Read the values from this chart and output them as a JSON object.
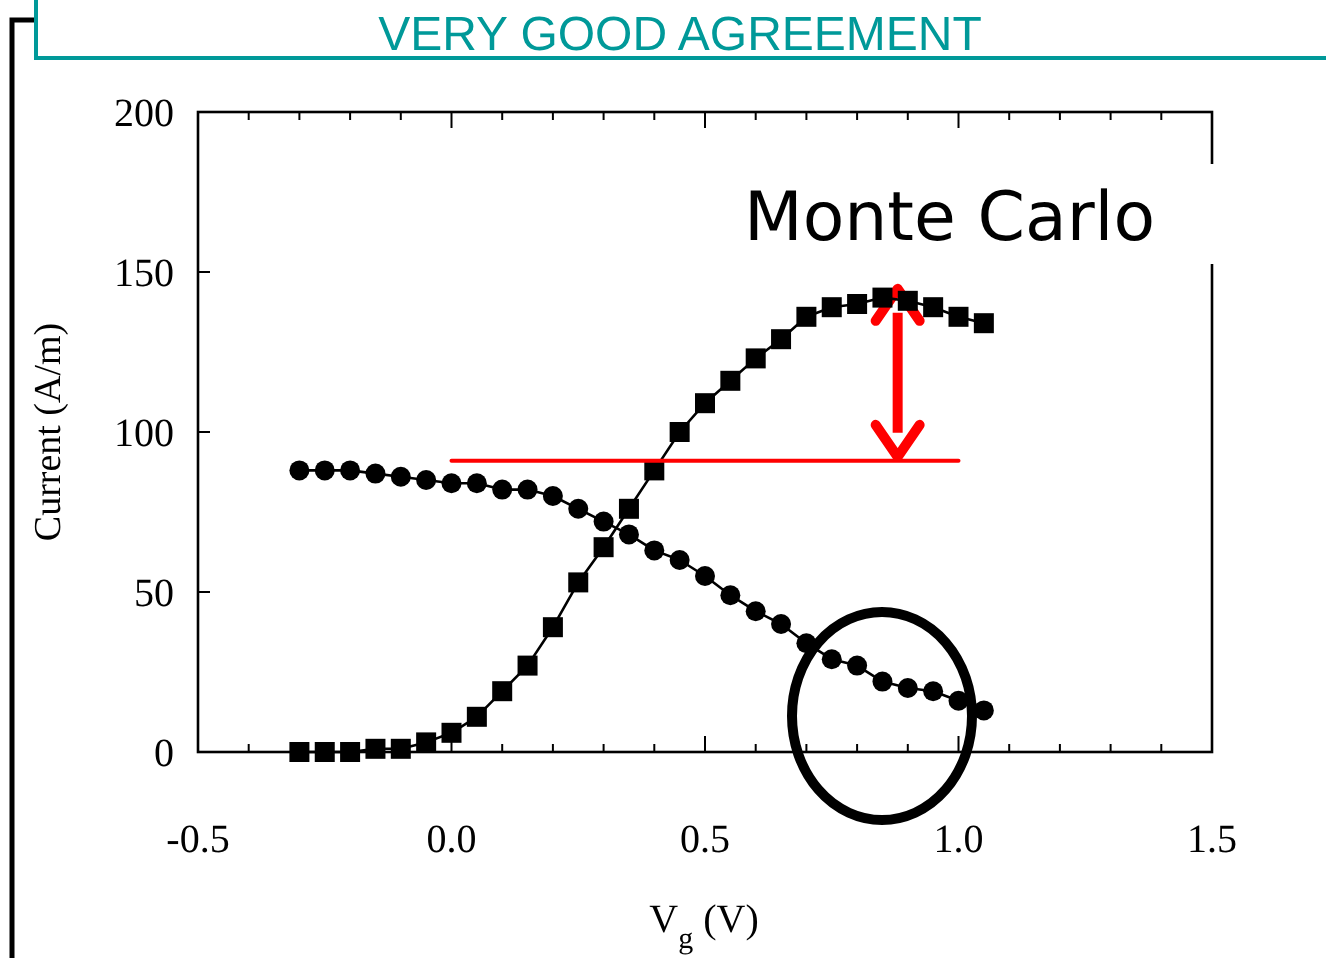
{
  "chart_data": {
    "type": "line",
    "title": "VERY GOOD AGREEMENT",
    "xlabel": "V$_{g}$ (V)",
    "ylabel": "Current (A/m)",
    "annotations": [
      "Monte Carlo"
    ],
    "x": [
      -0.3,
      -0.25,
      -0.2,
      -0.15,
      -0.1,
      -0.05,
      0,
      0.05,
      0.1,
      0.15,
      0.2,
      0.25,
      0.3,
      0.35,
      0.4,
      0.45,
      0.5,
      0.55,
      0.6,
      0.65,
      0.7,
      0.75,
      0.8,
      0.85,
      0.9,
      0.95,
      1.0,
      1.05
    ],
    "series": [
      {
        "color": "#000000",
        "marker": "square",
        "values": [
          0,
          0,
          0,
          1,
          1,
          3,
          6,
          11,
          19,
          27,
          39,
          53,
          64,
          76,
          88,
          100,
          109,
          116,
          123,
          129,
          136,
          139,
          140,
          142,
          141,
          139,
          136,
          134
        ]
      },
      {
        "color": "#000000",
        "marker": "circle",
        "values": [
          88,
          88,
          88,
          87,
          86,
          85,
          84,
          84,
          82,
          82,
          80,
          76,
          72,
          68,
          63,
          60,
          55,
          49,
          44,
          40,
          34,
          29,
          27,
          22,
          20,
          19,
          16,
          13
        ]
      },
      {
        "color": "#ff0000",
        "marker": "none",
        "x": [
          0,
          1.0
        ],
        "values": [
          91,
          91
        ]
      }
    ],
    "xlim": [
      -0.5,
      1.5
    ],
    "xticks": [
      {
        "value": -0.5,
        "label": "-0.5"
      },
      {
        "value": -0.4,
        "label": null
      },
      {
        "value": -0.3,
        "label": null
      },
      {
        "value": -0.2,
        "label": null
      },
      {
        "value": -0.1,
        "label": null
      },
      {
        "value": 0,
        "label": "0.0"
      },
      {
        "value": 0.1,
        "label": null
      },
      {
        "value": 0.2,
        "label": null
      },
      {
        "value": 0.3,
        "label": null
      },
      {
        "value": 0.4,
        "label": null
      },
      {
        "value": 0.5,
        "label": "0.5"
      },
      {
        "value": 0.6,
        "label": null
      },
      {
        "value": 0.7,
        "label": null
      },
      {
        "value": 0.8,
        "label": null
      },
      {
        "value": 0.9,
        "label": null
      },
      {
        "value": 1.0,
        "label": "1.0"
      },
      {
        "value": 1.1,
        "label": null
      },
      {
        "value": 1.2,
        "label": null
      },
      {
        "value": 1.3,
        "label": null
      },
      {
        "value": 1.4,
        "label": null
      },
      {
        "value": 1.5,
        "label": "1.5"
      }
    ],
    "ylim": [
      0,
      200
    ],
    "yticks": [
      0,
      50,
      100,
      150,
      200
    ]
  }
}
